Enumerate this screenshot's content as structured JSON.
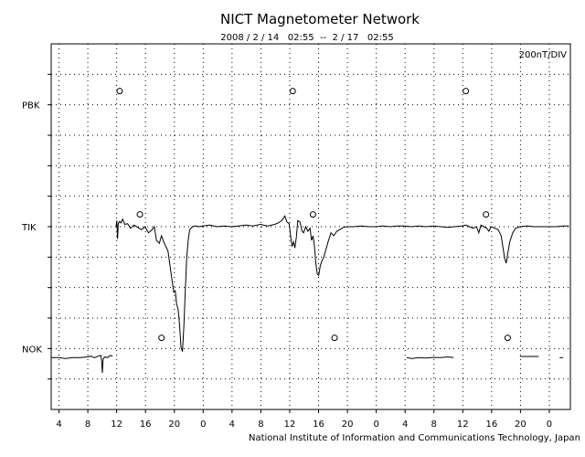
{
  "chart_data": {
    "type": "line",
    "title": "NICT Magnetometer Network",
    "subtitle": "2008 / 2 / 14   02:55  --  2 / 17   02:55",
    "scale_label": "200nT/DIV",
    "credit": "National Institute of Information and Communications Technology, Japan",
    "x_unit": "hours UT since 2008-02-14 02:55",
    "xlim": [
      0,
      72
    ],
    "x_ticks": [
      {
        "x": 1.08,
        "label": "4"
      },
      {
        "x": 5.08,
        "label": "8"
      },
      {
        "x": 9.08,
        "label": "12"
      },
      {
        "x": 13.08,
        "label": "16"
      },
      {
        "x": 17.08,
        "label": "20"
      },
      {
        "x": 21.08,
        "label": "0"
      },
      {
        "x": 25.08,
        "label": "4"
      },
      {
        "x": 29.08,
        "label": "8"
      },
      {
        "x": 33.08,
        "label": "12"
      },
      {
        "x": 37.08,
        "label": "16"
      },
      {
        "x": 41.08,
        "label": "20"
      },
      {
        "x": 45.08,
        "label": "0"
      },
      {
        "x": 49.08,
        "label": "4"
      },
      {
        "x": 53.08,
        "label": "8"
      },
      {
        "x": 57.08,
        "label": "12"
      },
      {
        "x": 61.08,
        "label": "16"
      },
      {
        "x": 65.08,
        "label": "20"
      },
      {
        "x": 69.08,
        "label": "0"
      }
    ],
    "y_unit": "nT (200 nT per division)",
    "ylim": [
      -1200,
      1200
    ],
    "grid": true,
    "station_labels": [
      {
        "label": "PBK",
        "y": 800
      },
      {
        "label": "TIK",
        "y": 0
      },
      {
        "label": "NOK",
        "y": -800
      }
    ],
    "local_midnight_markers": [
      {
        "station": "PBK",
        "x": [
          9.5,
          33.5,
          57.5
        ],
        "y": 890
      },
      {
        "station": "TIK",
        "x": [
          12.3,
          36.3,
          60.3
        ],
        "y": 80
      },
      {
        "station": "NOK",
        "x": [
          15.3,
          39.3,
          63.3
        ],
        "y": -730
      }
    ],
    "series": [
      {
        "station": "TIK",
        "segments": [
          [
            [
              9.0,
              0
            ],
            [
              9.1,
              40
            ],
            [
              9.2,
              -80
            ],
            [
              9.3,
              20
            ],
            [
              9.5,
              35
            ],
            [
              9.7,
              25
            ],
            [
              9.9,
              50
            ],
            [
              10.2,
              15
            ],
            [
              10.6,
              20
            ],
            [
              11.0,
              -10
            ],
            [
              11.5,
              10
            ],
            [
              12.0,
              -5
            ],
            [
              12.5,
              -20
            ],
            [
              12.8,
              -10
            ],
            [
              13.0,
              0
            ],
            [
              13.5,
              -40
            ],
            [
              14.0,
              -20
            ],
            [
              14.3,
              0
            ],
            [
              14.6,
              -90
            ],
            [
              15.0,
              -110
            ],
            [
              15.3,
              -60
            ],
            [
              15.6,
              -100
            ],
            [
              15.9,
              -130
            ],
            [
              16.2,
              -160
            ],
            [
              16.6,
              -300
            ],
            [
              17.0,
              -430
            ],
            [
              17.2,
              -420
            ],
            [
              17.4,
              -510
            ],
            [
              17.6,
              -540
            ],
            [
              17.8,
              -640
            ],
            [
              18.0,
              -790
            ],
            [
              18.2,
              -820
            ],
            [
              18.4,
              -650
            ],
            [
              18.6,
              -420
            ],
            [
              18.8,
              -200
            ],
            [
              19.0,
              -90
            ],
            [
              19.2,
              -20
            ],
            [
              19.6,
              0
            ],
            [
              20.0,
              5
            ],
            [
              20.5,
              0
            ],
            [
              21.0,
              5
            ],
            [
              22.0,
              10
            ],
            [
              23.0,
              0
            ],
            [
              24.0,
              5
            ],
            [
              25.0,
              0
            ],
            [
              26.0,
              5
            ],
            [
              27.0,
              10
            ],
            [
              28.0,
              5
            ],
            [
              29.0,
              15
            ],
            [
              30.0,
              5
            ],
            [
              31.0,
              15
            ],
            [
              31.5,
              25
            ],
            [
              32.0,
              40
            ],
            [
              32.4,
              70
            ],
            [
              32.7,
              30
            ],
            [
              33.0,
              20
            ],
            [
              33.2,
              -60
            ],
            [
              33.4,
              -130
            ],
            [
              33.6,
              -100
            ],
            [
              33.8,
              -140
            ],
            [
              34.0,
              -70
            ],
            [
              34.2,
              40
            ],
            [
              34.5,
              30
            ],
            [
              34.8,
              -30
            ],
            [
              35.0,
              -40
            ],
            [
              35.3,
              0
            ],
            [
              35.6,
              -30
            ],
            [
              35.9,
              -10
            ],
            [
              36.1,
              -90
            ],
            [
              36.3,
              -60
            ],
            [
              36.5,
              -120
            ],
            [
              36.7,
              -240
            ],
            [
              36.9,
              -310
            ],
            [
              37.1,
              -320
            ],
            [
              37.3,
              -260
            ],
            [
              37.5,
              -230
            ],
            [
              37.8,
              -200
            ],
            [
              38.1,
              -150
            ],
            [
              38.4,
              -100
            ],
            [
              38.8,
              -40
            ],
            [
              39.2,
              -60
            ],
            [
              39.6,
              -30
            ],
            [
              40.0,
              -20
            ],
            [
              40.5,
              -5
            ],
            [
              41.0,
              0
            ],
            [
              42.0,
              0
            ],
            [
              43.0,
              5
            ],
            [
              44.0,
              0
            ],
            [
              45.0,
              0
            ],
            [
              46.0,
              5
            ],
            [
              47.0,
              0
            ],
            [
              48.0,
              5
            ],
            [
              49.0,
              5
            ],
            [
              50.0,
              0
            ],
            [
              51.0,
              5
            ],
            [
              52.0,
              0
            ],
            [
              53.0,
              5
            ],
            [
              54.0,
              0
            ],
            [
              55.0,
              -5
            ],
            [
              56.0,
              0
            ],
            [
              57.0,
              5
            ],
            [
              57.5,
              10
            ],
            [
              58.0,
              0
            ],
            [
              58.5,
              -10
            ],
            [
              59.0,
              0
            ],
            [
              59.3,
              -40
            ],
            [
              59.6,
              10
            ],
            [
              60.0,
              0
            ],
            [
              60.4,
              -10
            ],
            [
              60.7,
              -30
            ],
            [
              61.0,
              0
            ],
            [
              61.5,
              -10
            ],
            [
              62.0,
              -20
            ],
            [
              62.4,
              -60
            ],
            [
              62.7,
              -150
            ],
            [
              62.9,
              -210
            ],
            [
              63.1,
              -240
            ],
            [
              63.3,
              -180
            ],
            [
              63.6,
              -100
            ],
            [
              64.0,
              -40
            ],
            [
              64.4,
              -10
            ],
            [
              65.0,
              0
            ],
            [
              66.0,
              5
            ],
            [
              67.0,
              0
            ],
            [
              68.0,
              0
            ],
            [
              69.0,
              0
            ],
            [
              70.0,
              0
            ],
            [
              71.0,
              5
            ],
            [
              71.8,
              5
            ]
          ]
        ]
      },
      {
        "station": "NOK",
        "segments": [
          [
            [
              0.0,
              -860
            ],
            [
              1.0,
              -860
            ],
            [
              2.0,
              -865
            ],
            [
              3.0,
              -860
            ],
            [
              4.0,
              -860
            ],
            [
              5.0,
              -855
            ],
            [
              5.5,
              -850
            ],
            [
              6.0,
              -860
            ],
            [
              6.5,
              -850
            ],
            [
              6.9,
              -845
            ],
            [
              7.0,
              -880
            ],
            [
              7.1,
              -960
            ],
            [
              7.2,
              -870
            ],
            [
              7.4,
              -855
            ],
            [
              7.8,
              -860
            ],
            [
              8.2,
              -845
            ],
            [
              8.5,
              -850
            ]
          ],
          [
            [
              49.3,
              -860
            ],
            [
              50.0,
              -865
            ],
            [
              51.0,
              -860
            ],
            [
              52.0,
              -862
            ],
            [
              53.0,
              -858
            ],
            [
              54.0,
              -860
            ],
            [
              55.0,
              -855
            ],
            [
              55.8,
              -860
            ]
          ],
          [
            [
              65.0,
              -852
            ],
            [
              67.6,
              -852
            ]
          ],
          [
            [
              70.5,
              -860
            ],
            [
              71.0,
              -860
            ]
          ]
        ]
      }
    ]
  }
}
